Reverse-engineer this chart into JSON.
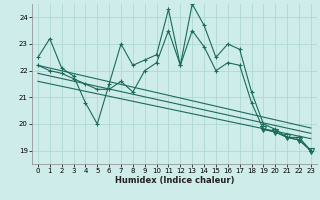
{
  "xlabel": "Humidex (Indice chaleur)",
  "bg_color": "#ceecea",
  "line_color": "#1a6b5a",
  "grid_color": "#b0d8d4",
  "xlim": [
    -0.5,
    23.5
  ],
  "ylim": [
    18.5,
    24.5
  ],
  "xticks": [
    0,
    1,
    2,
    3,
    4,
    5,
    6,
    7,
    8,
    9,
    10,
    11,
    12,
    13,
    14,
    15,
    16,
    17,
    18,
    19,
    20,
    21,
    22,
    23
  ],
  "yticks": [
    19,
    20,
    21,
    22,
    23,
    24
  ],
  "series1": [
    22.5,
    23.2,
    22.1,
    21.8,
    20.8,
    20.0,
    21.5,
    23.0,
    22.2,
    22.4,
    22.6,
    24.3,
    22.2,
    24.5,
    23.7,
    22.5,
    23.0,
    22.8,
    21.2,
    20.0,
    19.8,
    19.5,
    19.5,
    19.0
  ],
  "series2": [
    22.2,
    22.0,
    21.9,
    21.7,
    21.5,
    21.3,
    21.3,
    21.6,
    21.2,
    22.0,
    22.3,
    23.5,
    22.2,
    23.5,
    22.9,
    22.0,
    22.3,
    22.2,
    20.8,
    19.8,
    19.7,
    19.5,
    19.4,
    19.0
  ],
  "trend1_start": 22.2,
  "trend1_end": 19.85,
  "trend2_start": 21.9,
  "trend2_end": 19.65,
  "trend3_start": 21.6,
  "trend3_end": 19.45
}
